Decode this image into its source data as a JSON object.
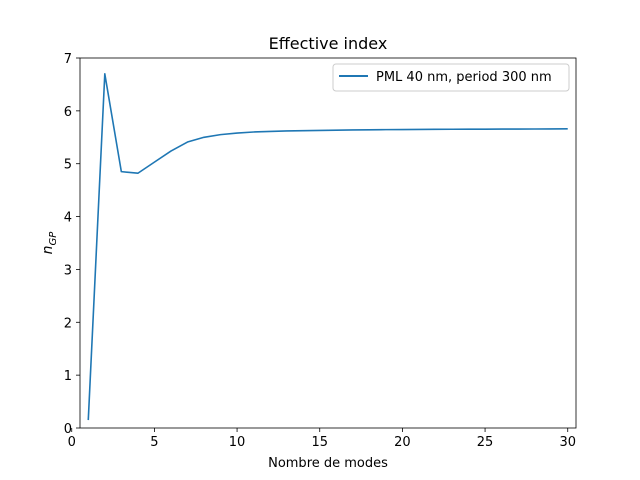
{
  "chart_data": {
    "type": "line",
    "title": "Effective index",
    "xlabel": "Nombre de modes",
    "ylabel_main": "n",
    "ylabel_sub": "GP",
    "xlim": [
      0.5,
      30.5
    ],
    "ylim": [
      0,
      7
    ],
    "xticks": [
      0,
      5,
      10,
      15,
      20,
      25,
      30
    ],
    "yticks": [
      0,
      1,
      2,
      3,
      4,
      5,
      6,
      7
    ],
    "grid": false,
    "legend_position": "top-right",
    "series": [
      {
        "name": "PML 40 nm, period 300 nm",
        "color": "#1f77b4",
        "x": [
          1,
          2,
          3,
          4,
          5,
          6,
          7,
          8,
          9,
          10,
          11,
          12,
          13,
          14,
          15,
          16,
          17,
          18,
          19,
          20,
          21,
          22,
          23,
          24,
          25,
          26,
          27,
          28,
          29,
          30
        ],
        "y": [
          0.15,
          6.7,
          4.85,
          4.82,
          5.03,
          5.24,
          5.41,
          5.5,
          5.55,
          5.58,
          5.6,
          5.61,
          5.62,
          5.625,
          5.63,
          5.635,
          5.64,
          5.642,
          5.645,
          5.647,
          5.649,
          5.65,
          5.652,
          5.653,
          5.654,
          5.655,
          5.656,
          5.657,
          5.658,
          5.66
        ]
      }
    ]
  }
}
